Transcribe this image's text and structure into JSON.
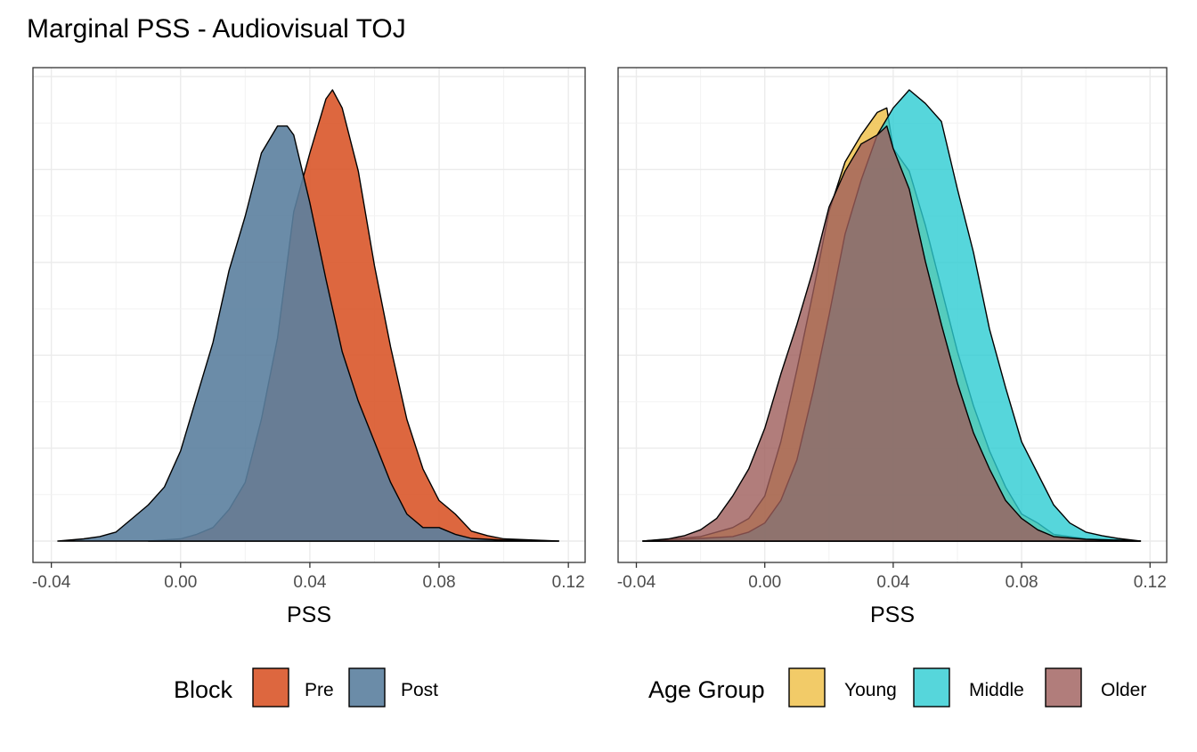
{
  "title": "Marginal PSS - Audiovisual TOJ",
  "colors": {
    "pre": "#D9572A",
    "post": "#5B7F9E",
    "young": "#F0C24E",
    "middle": "#2CCCD2",
    "older": "#9E5C5A"
  },
  "chart_data": [
    {
      "type": "area",
      "subtype": "density",
      "xlabel": "PSS",
      "ylabel": "",
      "xlim": [
        -0.04,
        0.12
      ],
      "ylim": [
        0,
        1
      ],
      "xticks": [
        -0.04,
        0.0,
        0.04,
        0.08,
        0.12
      ],
      "xtick_labels": [
        "-0.04",
        "0.00",
        "0.04",
        "0.08",
        "0.12"
      ],
      "grid": true,
      "legend": {
        "title": "Block",
        "position": "bottom",
        "entries": [
          "Pre",
          "Post"
        ]
      },
      "series": [
        {
          "name": "Pre",
          "color": "#D9572A",
          "opacity": 0.9,
          "x": [
            -0.01,
            0.0,
            0.005,
            0.01,
            0.015,
            0.02,
            0.025,
            0.03,
            0.035,
            0.04,
            0.045,
            0.047,
            0.05,
            0.055,
            0.06,
            0.065,
            0.07,
            0.075,
            0.08,
            0.085,
            0.09,
            0.095,
            0.1,
            0.11,
            0.117
          ],
          "y": [
            0.0,
            0.005,
            0.015,
            0.03,
            0.07,
            0.13,
            0.27,
            0.45,
            0.73,
            0.86,
            0.98,
            1.0,
            0.96,
            0.82,
            0.61,
            0.43,
            0.27,
            0.16,
            0.09,
            0.06,
            0.022,
            0.012,
            0.005,
            0.002,
            0.0
          ]
        },
        {
          "name": "Post",
          "color": "#5B7F9E",
          "opacity": 0.9,
          "x": [
            -0.038,
            -0.03,
            -0.025,
            -0.02,
            -0.015,
            -0.01,
            -0.005,
            0.0,
            0.005,
            0.01,
            0.015,
            0.02,
            0.025,
            0.03,
            0.033,
            0.035,
            0.04,
            0.045,
            0.05,
            0.055,
            0.06,
            0.065,
            0.07,
            0.075,
            0.08,
            0.085,
            0.09,
            0.1,
            0.11,
            0.117
          ],
          "y": [
            0.0,
            0.005,
            0.01,
            0.02,
            0.05,
            0.08,
            0.12,
            0.2,
            0.32,
            0.44,
            0.6,
            0.72,
            0.86,
            0.92,
            0.92,
            0.9,
            0.75,
            0.58,
            0.42,
            0.31,
            0.22,
            0.13,
            0.06,
            0.03,
            0.03,
            0.015,
            0.006,
            0.002,
            0.001,
            0.0
          ]
        }
      ]
    },
    {
      "type": "area",
      "subtype": "density",
      "xlabel": "PSS",
      "ylabel": "",
      "xlim": [
        -0.04,
        0.12
      ],
      "ylim": [
        0,
        1
      ],
      "xticks": [
        -0.04,
        0.0,
        0.04,
        0.08,
        0.12
      ],
      "xtick_labels": [
        "-0.04",
        "0.00",
        "0.04",
        "0.08",
        "0.12"
      ],
      "grid": true,
      "legend": {
        "title": "Age Group",
        "position": "bottom",
        "entries": [
          "Young",
          "Middle",
          "Older"
        ]
      },
      "series": [
        {
          "name": "Young",
          "color": "#F0C24E",
          "opacity": 0.85,
          "x": [
            -0.038,
            -0.03,
            -0.02,
            -0.015,
            -0.01,
            -0.005,
            0.0,
            0.005,
            0.01,
            0.015,
            0.02,
            0.025,
            0.03,
            0.035,
            0.038,
            0.04,
            0.045,
            0.05,
            0.055,
            0.06,
            0.065,
            0.07,
            0.075,
            0.08,
            0.085,
            0.09,
            0.1,
            0.11,
            0.117
          ],
          "y": [
            0.0,
            0.004,
            0.01,
            0.02,
            0.03,
            0.05,
            0.1,
            0.22,
            0.38,
            0.55,
            0.73,
            0.84,
            0.9,
            0.95,
            0.96,
            0.87,
            0.82,
            0.7,
            0.56,
            0.42,
            0.3,
            0.2,
            0.12,
            0.06,
            0.04,
            0.015,
            0.005,
            0.002,
            0.0
          ]
        },
        {
          "name": "Middle",
          "color": "#2CCCD2",
          "opacity": 0.8,
          "x": [
            -0.038,
            -0.03,
            -0.02,
            -0.01,
            -0.005,
            0.0,
            0.005,
            0.01,
            0.015,
            0.02,
            0.025,
            0.03,
            0.035,
            0.04,
            0.045,
            0.05,
            0.055,
            0.06,
            0.065,
            0.07,
            0.075,
            0.08,
            0.085,
            0.09,
            0.095,
            0.1,
            0.105,
            0.11,
            0.117
          ],
          "y": [
            0.0,
            0.003,
            0.006,
            0.01,
            0.02,
            0.04,
            0.09,
            0.18,
            0.33,
            0.5,
            0.68,
            0.8,
            0.9,
            0.96,
            1.0,
            0.97,
            0.93,
            0.78,
            0.64,
            0.47,
            0.34,
            0.22,
            0.15,
            0.08,
            0.04,
            0.02,
            0.012,
            0.006,
            0.0
          ]
        },
        {
          "name": "Older",
          "color": "#9E5C5A",
          "opacity": 0.8,
          "x": [
            -0.038,
            -0.03,
            -0.025,
            -0.02,
            -0.015,
            -0.01,
            -0.005,
            0.0,
            0.005,
            0.01,
            0.015,
            0.02,
            0.025,
            0.03,
            0.035,
            0.038,
            0.04,
            0.045,
            0.05,
            0.055,
            0.06,
            0.065,
            0.07,
            0.075,
            0.08,
            0.085,
            0.09,
            0.1,
            0.11,
            0.117
          ],
          "y": [
            0.0,
            0.005,
            0.012,
            0.025,
            0.05,
            0.1,
            0.16,
            0.25,
            0.37,
            0.48,
            0.6,
            0.74,
            0.82,
            0.88,
            0.9,
            0.92,
            0.87,
            0.78,
            0.62,
            0.48,
            0.35,
            0.24,
            0.16,
            0.09,
            0.05,
            0.025,
            0.01,
            0.004,
            0.002,
            0.0
          ]
        }
      ]
    }
  ]
}
